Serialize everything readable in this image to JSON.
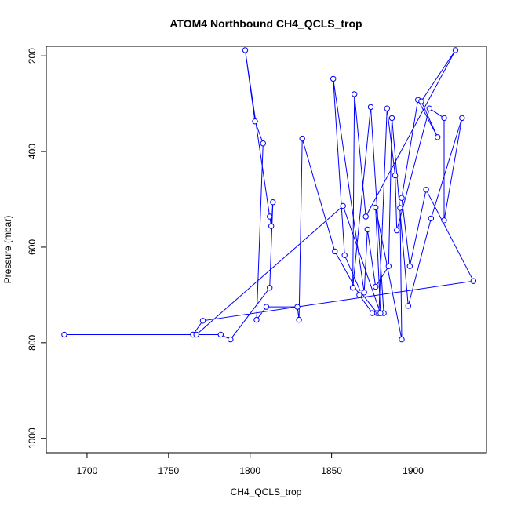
{
  "chart_data": {
    "type": "line",
    "title": "ATOM4 Northbound CH4_QCLS_trop",
    "xlabel": "CH4_QCLS_trop",
    "ylabel": "Pressure (mbar)",
    "xlim": [
      1675,
      1945
    ],
    "ylim": [
      1030,
      180
    ],
    "y_reversed": true,
    "xticks": [
      1700,
      1750,
      1800,
      1850,
      1900
    ],
    "yticks": [
      200,
      400,
      600,
      800,
      1000
    ],
    "grid": false,
    "series": [
      {
        "marker": "open-circle",
        "color": "#0000ff",
        "x": [
          1686,
          1765,
          1771,
          1937,
          1908,
          1898,
          1893,
          1903,
          1915,
          1905,
          1926,
          1871,
          1864,
          1863,
          1874,
          1882,
          1878,
          1868,
          1858,
          1851,
          1870,
          1872,
          1877,
          1885,
          1887,
          1897,
          1911,
          1930,
          1919,
          1919,
          1910,
          1890,
          1889,
          1884,
          1879,
          1875,
          1867,
          1852,
          1832,
          1830,
          1829,
          1810,
          1804,
          1808,
          1803,
          1797,
          1812,
          1813,
          1814,
          1812,
          1788,
          1782,
          1767,
          1857,
          1880,
          1877,
          1893,
          1892
        ],
        "y": [
          783,
          783,
          754,
          671,
          480,
          640,
          497,
          292,
          370,
          295,
          188,
          536,
          280,
          685,
          307,
          738,
          738,
          695,
          617,
          248,
          695,
          563,
          683,
          640,
          330,
          723,
          540,
          330,
          544,
          330,
          310,
          565,
          450,
          310,
          738,
          738,
          700,
          609,
          373,
          752,
          725,
          725,
          752,
          383,
          337,
          188,
          536,
          556,
          506,
          685,
          793,
          783,
          783,
          514,
          738,
          517,
          793,
          518
        ]
      }
    ]
  }
}
